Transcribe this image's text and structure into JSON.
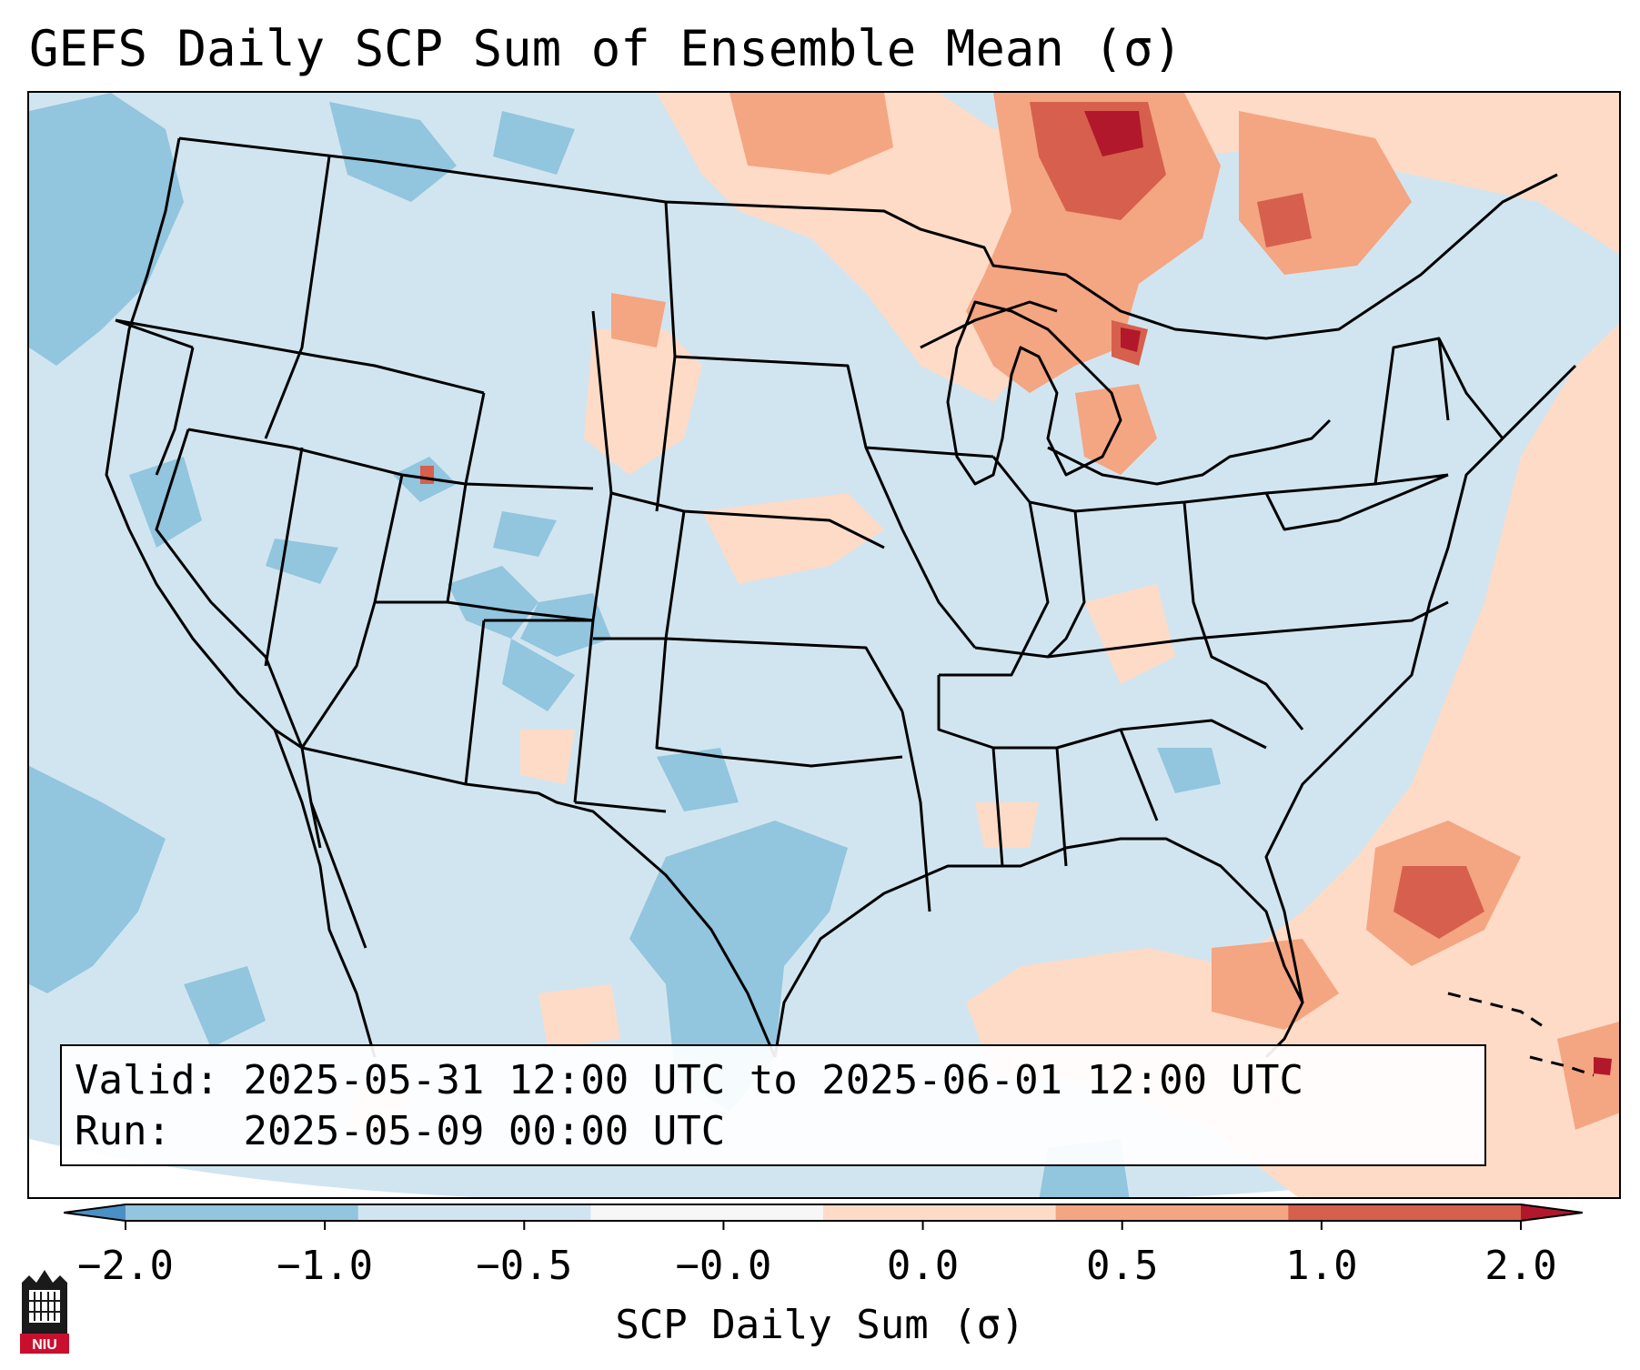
{
  "title": "GEFS Daily SCP Sum of Ensemble Mean (σ)",
  "info": {
    "valid_label": "Valid:",
    "valid_value": "2025-05-31 12:00 UTC to 2025-06-01 12:00 UTC",
    "run_label": "Run:",
    "run_value": "2025-05-09 00:00 UTC"
  },
  "colorbar": {
    "label": "SCP Daily Sum (σ)",
    "ticks": [
      "−2.0",
      "−1.0",
      "−0.5",
      "−0.0",
      "0.0",
      "0.5",
      "1.0",
      "2.0"
    ],
    "colors": [
      "#4a90c4",
      "#92c5de",
      "#d1e5f0",
      "#f7f7f7",
      "#fddbc7",
      "#f4a582",
      "#d6604d",
      "#b2182b"
    ]
  },
  "logo": {
    "text": "NIU"
  }
}
